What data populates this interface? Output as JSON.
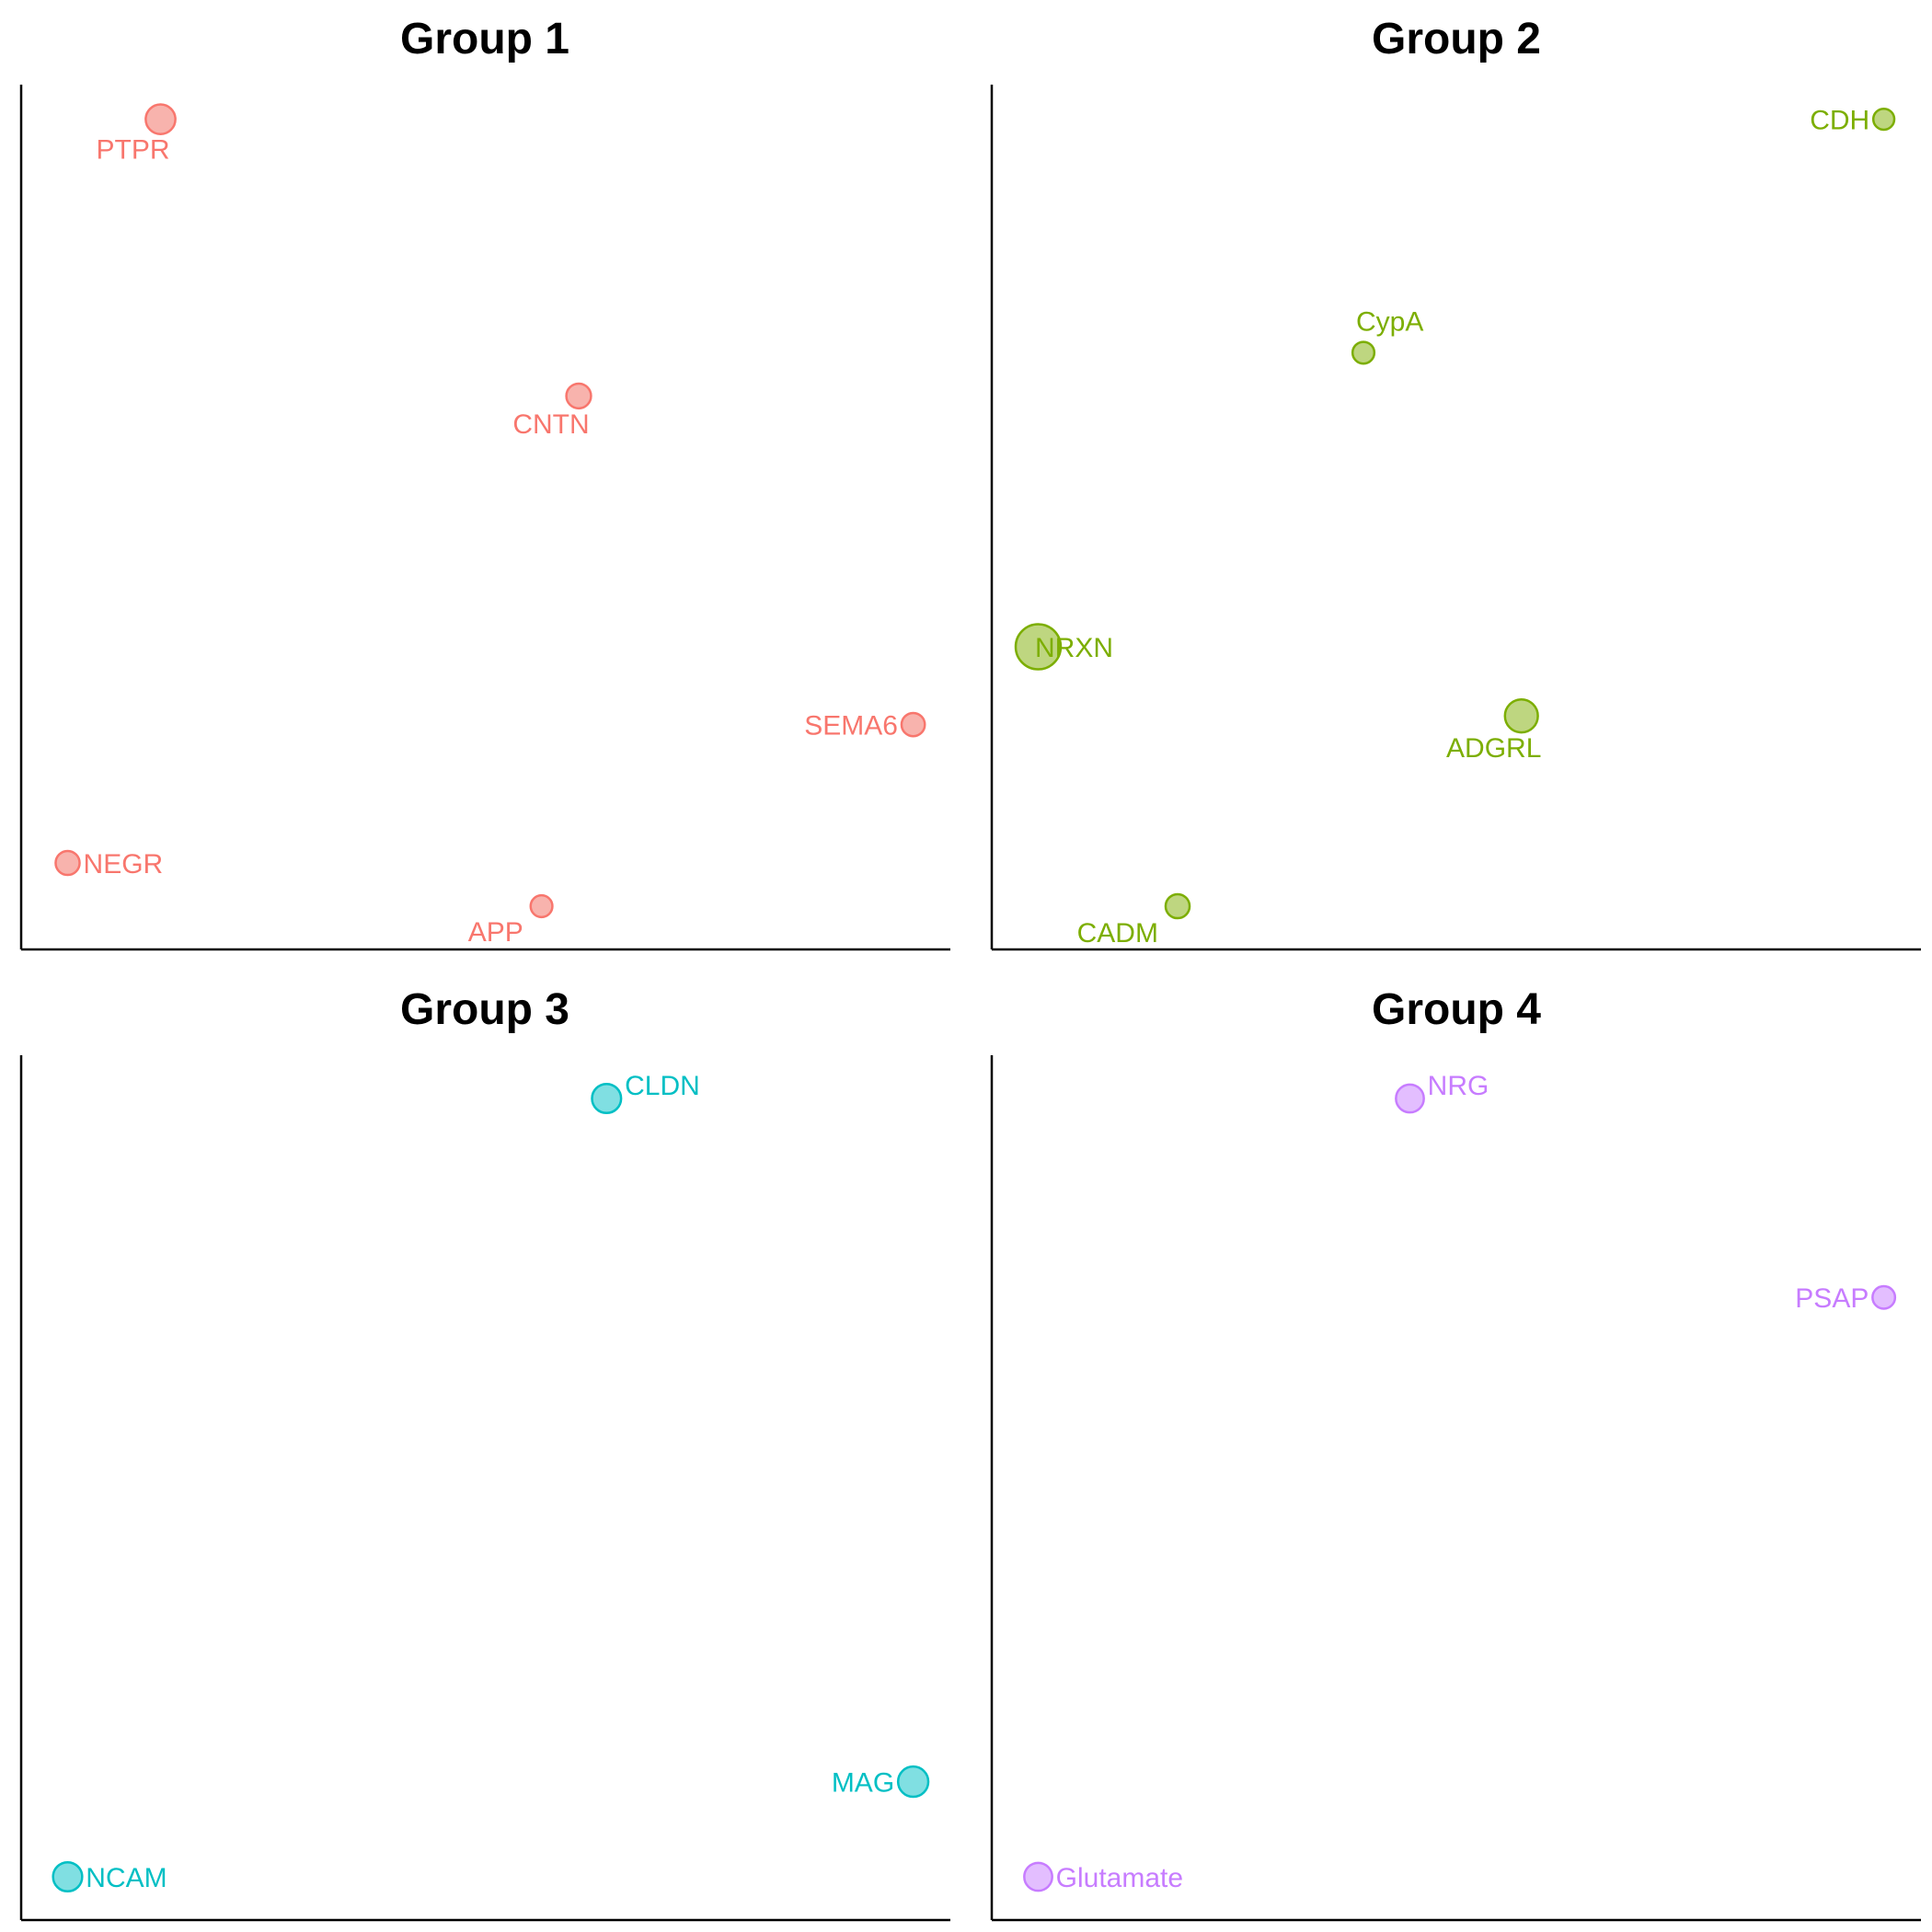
{
  "chart_data": [
    {
      "type": "scatter",
      "title": "Group 1",
      "color": "#F8766D",
      "fill": "#F8B3AD",
      "points": [
        {
          "label": "PTPR",
          "x": 0.15,
          "y": 0.96,
          "size": 2.6,
          "label_pos": "below"
        },
        {
          "label": "CNTN",
          "x": 0.6,
          "y": 0.64,
          "size": 1.8,
          "label_pos": "below"
        },
        {
          "label": "SEMA6",
          "x": 0.96,
          "y": 0.26,
          "size": 1.6,
          "label_pos": "left"
        },
        {
          "label": "NEGR",
          "x": 0.05,
          "y": 0.1,
          "size": 1.7,
          "label_pos": "right"
        },
        {
          "label": "APP",
          "x": 0.56,
          "y": 0.05,
          "size": 1.4,
          "label_pos": "below-left"
        }
      ]
    },
    {
      "type": "scatter",
      "title": "Group 2",
      "color": "#7CAE00",
      "fill": "#BED680",
      "points": [
        {
          "label": "CDH",
          "x": 0.96,
          "y": 0.96,
          "size": 1.3,
          "label_pos": "left"
        },
        {
          "label": "CypA",
          "x": 0.4,
          "y": 0.69,
          "size": 1.4,
          "label_pos": "above"
        },
        {
          "label": "NRXN",
          "x": 0.05,
          "y": 0.35,
          "size": 6.0,
          "label_pos": "right"
        },
        {
          "label": "ADGRL",
          "x": 0.57,
          "y": 0.27,
          "size": 3.2,
          "label_pos": "below"
        },
        {
          "label": "CADM",
          "x": 0.2,
          "y": 0.05,
          "size": 1.7,
          "label_pos": "below-left"
        }
      ]
    },
    {
      "type": "scatter",
      "title": "Group 3",
      "color": "#00BFC4",
      "fill": "#80DFE2",
      "points": [
        {
          "label": "CLDN",
          "x": 0.63,
          "y": 0.95,
          "size": 2.5,
          "label_pos": "above-right"
        },
        {
          "label": "MAG",
          "x": 0.96,
          "y": 0.16,
          "size": 2.7,
          "label_pos": "left"
        },
        {
          "label": "NCAM",
          "x": 0.05,
          "y": 0.05,
          "size": 2.5,
          "label_pos": "right"
        }
      ]
    },
    {
      "type": "scatter",
      "title": "Group 4",
      "color": "#C77CFF",
      "fill": "#E3BEFF",
      "points": [
        {
          "label": "NRG",
          "x": 0.45,
          "y": 0.95,
          "size": 2.3,
          "label_pos": "above-right"
        },
        {
          "label": "PSAP",
          "x": 0.96,
          "y": 0.72,
          "size": 1.5,
          "label_pos": "left"
        },
        {
          "label": "Glutamate",
          "x": 0.05,
          "y": 0.05,
          "size": 2.3,
          "label_pos": "right"
        }
      ]
    }
  ]
}
